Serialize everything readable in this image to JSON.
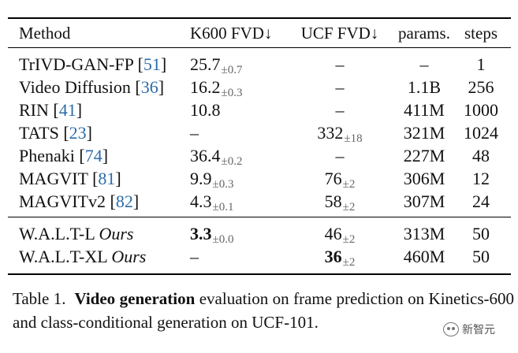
{
  "table": {
    "headers": {
      "method": "Method",
      "k600": "K600 FVD↓",
      "ucf": "UCF FVD↓",
      "params": "params.",
      "steps": "steps"
    },
    "rows": [
      {
        "method": "TrIVD-GAN-FP",
        "cite": "51",
        "k600": "25.7",
        "k600_pm": "±0.7",
        "ucf": "–",
        "ucf_pm": "",
        "params": "–",
        "steps": "1"
      },
      {
        "method": "Video Diffusion",
        "cite": "36",
        "k600": "16.2",
        "k600_pm": "±0.3",
        "ucf": "–",
        "ucf_pm": "",
        "params": "1.1B",
        "steps": "256"
      },
      {
        "method": "RIN",
        "cite": "41",
        "k600": "10.8",
        "k600_pm": "",
        "ucf": "–",
        "ucf_pm": "",
        "params": "411M",
        "steps": "1000"
      },
      {
        "method": "TATS",
        "cite": "23",
        "k600": "–",
        "k600_pm": "",
        "ucf": "332",
        "ucf_pm": "±18",
        "params": "321M",
        "steps": "1024"
      },
      {
        "method": "Phenaki",
        "cite": "74",
        "k600": "36.4",
        "k600_pm": "±0.2",
        "ucf": "–",
        "ucf_pm": "",
        "params": "227M",
        "steps": "48"
      },
      {
        "method": "MAGVIT",
        "cite": "81",
        "k600": "9.9",
        "k600_pm": "±0.3",
        "ucf": "76",
        "ucf_pm": "±2",
        "params": "306M",
        "steps": "12"
      },
      {
        "method": "MAGVITv2",
        "cite": "82",
        "k600": "4.3",
        "k600_pm": "±0.1",
        "ucf": "58",
        "ucf_pm": "±2",
        "params": "307M",
        "steps": "24"
      }
    ],
    "ours": [
      {
        "method": "W.A.L.T-L",
        "tag": "Ours",
        "k600": "3.3",
        "k600_pm": "±0.0",
        "ucf": "46",
        "ucf_pm": "±2",
        "params": "313M",
        "steps": "50"
      },
      {
        "method": "W.A.L.T-XL",
        "tag": "Ours",
        "k600": "–",
        "k600_pm": "",
        "ucf": "36",
        "ucf_pm": "±2",
        "params": "460M",
        "steps": "50"
      }
    ]
  },
  "caption": {
    "label": "Table 1.",
    "bold": "Video generation",
    "text": " evaluation on frame prediction on Kinetics-600 and class-conditional generation on UCF-101."
  },
  "watermark": "新智元"
}
